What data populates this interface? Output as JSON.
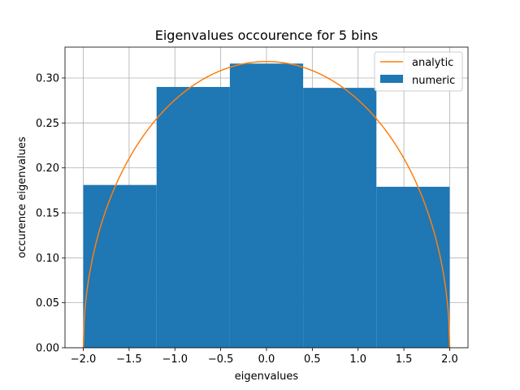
{
  "chart_data": {
    "type": "bar",
    "title": "Eigenvalues occourence for 5 bins",
    "xlabel": "eigenvalues",
    "ylabel": "occurence eigenvalues",
    "xlim": [
      -2.2,
      2.2
    ],
    "ylim": [
      0.0,
      0.3343
    ],
    "xticks": [
      -2.0,
      -1.5,
      -1.0,
      -0.5,
      0.0,
      0.5,
      1.0,
      1.5,
      2.0
    ],
    "xtick_labels": [
      "−2.0",
      "−1.5",
      "−1.0",
      "−0.5",
      "0.0",
      "0.5",
      "1.0",
      "1.5",
      "2.0"
    ],
    "yticks": [
      0.0,
      0.05,
      0.1,
      0.15,
      0.2,
      0.25,
      0.3
    ],
    "ytick_labels": [
      "0.00",
      "0.05",
      "0.10",
      "0.15",
      "0.20",
      "0.25",
      "0.30"
    ],
    "grid": true,
    "legend_position": "top-right",
    "bins": {
      "edges": [
        -2.0,
        -1.2,
        -0.4,
        0.4,
        1.2,
        2.0
      ],
      "values": [
        0.181,
        0.29,
        0.316,
        0.289,
        0.179
      ]
    },
    "series": [
      {
        "name": "analytic",
        "kind": "line",
        "color": "#ff7f0e",
        "formula": "sqrt(4 - x^2) / (2*pi)",
        "x_range": [
          -2.0,
          2.0
        ]
      },
      {
        "name": "numeric",
        "kind": "bar",
        "color": "#1f77b4"
      }
    ]
  }
}
